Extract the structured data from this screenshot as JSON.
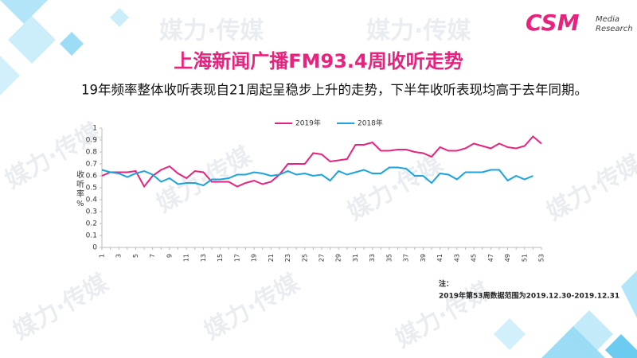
{
  "watermark": "媒力·传媒",
  "logo": {
    "brand": "CSM",
    "line1": "Media",
    "line2": "Research"
  },
  "note": {
    "label": "注：",
    "text": "2019年第53周数据范围为2019.12.30-2019.12.31"
  },
  "chart_data": {
    "type": "line",
    "title": "上海新闻广播FM93.4周收听走势",
    "subtitle": "19年频率整体收听表现自21周起呈稳步上升的走势，下半年收听表现均高于去年同期。",
    "y_label": "收听率%",
    "categories": [
      1,
      null,
      3,
      null,
      5,
      null,
      7,
      null,
      9,
      null,
      11,
      null,
      13,
      null,
      15,
      null,
      17,
      null,
      19,
      null,
      21,
      null,
      23,
      null,
      25,
      null,
      27,
      null,
      29,
      null,
      31,
      null,
      33,
      null,
      35,
      null,
      37,
      null,
      39,
      null,
      41,
      null,
      43,
      null,
      45,
      null,
      47,
      null,
      49,
      null,
      51,
      null,
      53
    ],
    "series": [
      {
        "name": "2019年",
        "color": "#e8237e",
        "values": [
          0.6,
          0.63,
          0.63,
          0.63,
          0.64,
          0.51,
          0.6,
          0.65,
          0.68,
          0.62,
          0.58,
          0.64,
          0.63,
          0.55,
          0.55,
          0.55,
          0.51,
          0.54,
          0.56,
          0.53,
          0.55,
          0.61,
          0.7,
          0.7,
          0.7,
          0.79,
          0.78,
          0.72,
          0.73,
          0.74,
          0.86,
          0.86,
          0.88,
          0.81,
          0.81,
          0.82,
          0.82,
          0.8,
          0.79,
          0.76,
          0.84,
          0.81,
          0.81,
          0.83,
          0.87,
          0.85,
          0.83,
          0.87,
          0.84,
          0.83,
          0.85,
          0.93,
          0.87
        ]
      },
      {
        "name": "2018年",
        "color": "#1aa3dc",
        "values": [
          0.65,
          0.63,
          0.62,
          0.59,
          0.62,
          0.64,
          0.61,
          0.55,
          0.58,
          0.53,
          0.54,
          0.54,
          0.52,
          0.57,
          0.57,
          0.58,
          0.61,
          0.61,
          0.63,
          0.62,
          0.6,
          0.61,
          0.64,
          0.61,
          0.62,
          0.6,
          0.61,
          0.56,
          0.64,
          0.61,
          0.63,
          0.65,
          0.62,
          0.62,
          0.67,
          0.67,
          0.66,
          0.6,
          0.6,
          0.54,
          0.62,
          0.61,
          0.57,
          0.63,
          0.63,
          0.63,
          0.65,
          0.65,
          0.56,
          0.6,
          0.57,
          0.6,
          null
        ]
      }
    ],
    "ylim": [
      0,
      1
    ],
    "yticks": [
      0,
      0.1,
      0.2,
      0.3,
      0.4,
      0.5,
      0.6,
      0.7,
      0.8,
      0.9,
      1
    ],
    "grid": false,
    "legend": "top"
  }
}
